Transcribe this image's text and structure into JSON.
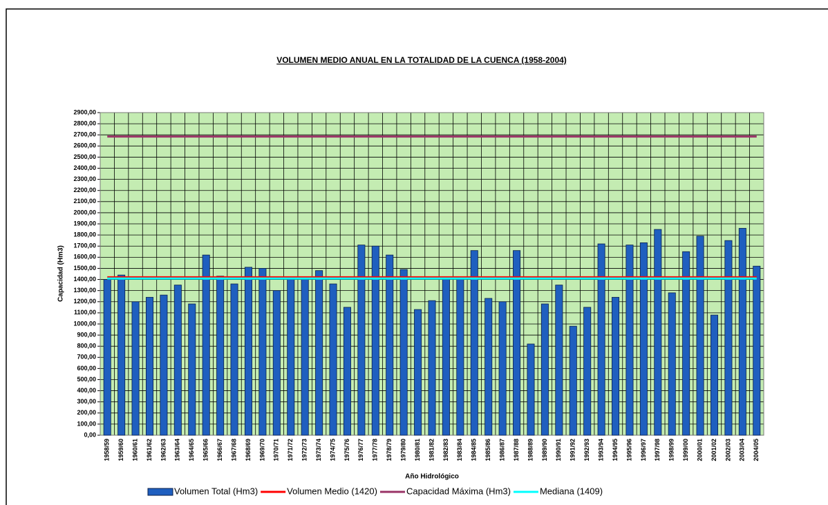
{
  "chart_data": {
    "type": "bar",
    "title": "VOLUMEN MEDIO ANUAL EN LA TOTALIDAD DE LA CUENCA (1958-2004)",
    "x_label": "Año Hidrológico",
    "y_label": "Capacidad (Hm3)",
    "categories": [
      "1958/59",
      "1959/60",
      "1960/61",
      "1961/62",
      "1962/63",
      "1963/64",
      "1964/65",
      "1965/66",
      "1966/67",
      "1967/68",
      "1968/69",
      "1969/70",
      "1970/71",
      "1971/72",
      "1972/73",
      "1973/74",
      "1974/75",
      "1975/76",
      "1976/77",
      "1977/78",
      "1978/79",
      "1979/80",
      "1980/81",
      "1981/82",
      "1982/83",
      "1983/84",
      "1984/85",
      "1985/86",
      "1986/87",
      "1987/88",
      "1988/89",
      "1989/90",
      "1990/91",
      "1991/92",
      "1992/93",
      "1993/94",
      "1994/95",
      "1995/96",
      "1996/97",
      "1997/98",
      "1998/99",
      "1999/00",
      "2000/01",
      "2001/02",
      "2002/03",
      "2003/04",
      "2004/05"
    ],
    "series": [
      {
        "name": "Volumen Total (Hm3)",
        "type": "bar",
        "color": "#1f5fbf",
        "values": [
          1400,
          1440,
          1200,
          1240,
          1260,
          1350,
          1180,
          1620,
          1430,
          1360,
          1510,
          1500,
          1300,
          1400,
          1400,
          1480,
          1360,
          1150,
          1710,
          1700,
          1620,
          1490,
          1130,
          1210,
          1400,
          1400,
          1660,
          1230,
          1200,
          1660,
          820,
          1180,
          1350,
          980,
          1150,
          1720,
          1240,
          1710,
          1730,
          1850,
          1280,
          1650,
          1790,
          1080,
          1750,
          1860,
          1520
        ]
      },
      {
        "name": "Volumen Medio (1420)",
        "type": "hline",
        "color": "#ff0000",
        "value": 1420
      },
      {
        "name": "Capacidad Máxima (Hm3)",
        "type": "hline",
        "color": "#993366",
        "value": 2685
      },
      {
        "name": "Mediana (1409)",
        "type": "hline",
        "color": "#00ffff",
        "value": 1409
      }
    ],
    "ylim": [
      0,
      2900
    ],
    "yticks": [
      {
        "value": 0,
        "label": "0,00"
      },
      {
        "value": 100,
        "label": "100,00"
      },
      {
        "value": 200,
        "label": "200,00"
      },
      {
        "value": 300,
        "label": "300,00"
      },
      {
        "value": 400,
        "label": "400,00"
      },
      {
        "value": 500,
        "label": "500,00"
      },
      {
        "value": 600,
        "label": "600,00"
      },
      {
        "value": 700,
        "label": "700,00"
      },
      {
        "value": 800,
        "label": "800,00"
      },
      {
        "value": 900,
        "label": "900,00"
      },
      {
        "value": 1000,
        "label": "1000,00"
      },
      {
        "value": 1100,
        "label": "1100,00"
      },
      {
        "value": 1200,
        "label": "1200,00"
      },
      {
        "value": 1300,
        "label": "1300,00"
      },
      {
        "value": 1400,
        "label": "1400,00"
      },
      {
        "value": 1500,
        "label": "1500,00"
      },
      {
        "value": 1600,
        "label": "1600,00"
      },
      {
        "value": 1700,
        "label": "1700,00"
      },
      {
        "value": 1800,
        "label": "1800,00"
      },
      {
        "value": 1900,
        "label": "1900,00"
      },
      {
        "value": 2000,
        "label": "2000,00"
      },
      {
        "value": 2100,
        "label": "2100,00"
      },
      {
        "value": 2200,
        "label": "2200,00"
      },
      {
        "value": 2300,
        "label": "2300,00"
      },
      {
        "value": 2400,
        "label": "2400,00"
      },
      {
        "value": 2500,
        "label": "2500,00"
      },
      {
        "value": 2600,
        "label": "2600,00"
      },
      {
        "value": 2700,
        "label": "2700,00"
      },
      {
        "value": 2800,
        "label": "2800,00"
      },
      {
        "value": 2900,
        "label": "2900,00"
      }
    ],
    "grid": true,
    "plot_background": "#c4ecb2",
    "legend": "bottom"
  }
}
